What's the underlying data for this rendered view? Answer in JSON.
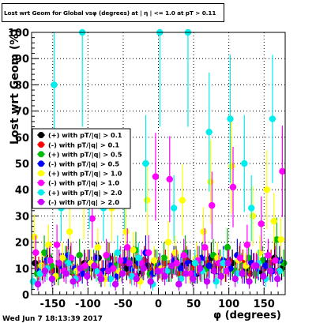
{
  "title": "Lost wrt Geom for Global vsφ (degrees) at | η | <= 1.0 at pT > 0.11",
  "footer": "Wed Jun  7 18:13:39 2017",
  "chart_data": {
    "type": "scatter",
    "title": "Lost wrt Geom for Global vsφ (degrees) at | η | <= 1.0 at pT > 0.11",
    "xlabel": "φ (degrees)",
    "ylabel": "Lost  wrt  Geom (%)",
    "xlim": [
      -180,
      180
    ],
    "ylim": [
      0,
      100
    ],
    "x_ticks": [
      -150,
      -100,
      -50,
      0,
      50,
      100,
      150
    ],
    "y_ticks": [
      0,
      10,
      20,
      30,
      40,
      50,
      60,
      70,
      80,
      90,
      100
    ],
    "grid": true,
    "legend_position": "left-middle",
    "series": [
      {
        "name": "(+) with pT/|q| > 0.1",
        "color": "#000000",
        "marker": "circle",
        "x": [
          -175,
          -165,
          -155,
          -145,
          -135,
          -125,
          -115,
          -105,
          -95,
          -85,
          -75,
          -65,
          -55,
          -45,
          -35,
          -25,
          -15,
          -5,
          5,
          15,
          25,
          35,
          45,
          55,
          65,
          75,
          85,
          95,
          105,
          115,
          125,
          135,
          145,
          155,
          165,
          175
        ],
        "y": [
          12,
          10,
          14,
          9,
          11,
          13,
          8,
          12,
          10,
          14,
          9,
          11,
          12,
          10,
          13,
          8,
          11,
          12,
          10,
          9,
          13,
          11,
          12,
          8,
          10,
          14,
          11,
          9,
          12,
          13,
          10,
          11,
          9,
          12,
          14,
          10
        ]
      },
      {
        "name": "(-) with pT/|q| > 0.1",
        "color": "#ff0000",
        "marker": "circle",
        "x": [
          -170,
          -160,
          -150,
          -140,
          -130,
          -120,
          -110,
          -100,
          -90,
          -80,
          -70,
          -60,
          -50,
          -40,
          -30,
          -20,
          -10,
          0,
          10,
          20,
          30,
          40,
          50,
          60,
          70,
          80,
          90,
          100,
          110,
          120,
          130,
          140,
          150,
          160,
          170
        ],
        "y": [
          10,
          12,
          9,
          11,
          13,
          8,
          10,
          12,
          11,
          9,
          14,
          10,
          12,
          8,
          11,
          13,
          9,
          10,
          12,
          11,
          8,
          13,
          10,
          9,
          12,
          11,
          10,
          13,
          9,
          12,
          8,
          11,
          10,
          12,
          9
        ]
      },
      {
        "name": "(+) with pT/|q| > 0.5",
        "color": "#00bb00",
        "marker": "circle",
        "x": [
          -172,
          -162,
          -152,
          -142,
          -132,
          -122,
          -112,
          -102,
          -92,
          -82,
          -72,
          -62,
          -52,
          -42,
          -32,
          -22,
          -12,
          -2,
          8,
          18,
          28,
          38,
          48,
          58,
          68,
          78,
          88,
          98,
          108,
          118,
          128,
          138,
          148,
          158,
          168,
          178
        ],
        "y": [
          8,
          16,
          11,
          7,
          13,
          9,
          15,
          10,
          12,
          6,
          14,
          11,
          9,
          13,
          17,
          10,
          8,
          12,
          14,
          9,
          11,
          16,
          7,
          13,
          10,
          15,
          12,
          18,
          9,
          11,
          14,
          8,
          13,
          10,
          21,
          12
        ]
      },
      {
        "name": "(-) with pT/|q| > 0.5",
        "color": "#0000ff",
        "marker": "circle",
        "x": [
          -168,
          -158,
          -148,
          -138,
          -128,
          -118,
          -108,
          -98,
          -88,
          -78,
          -68,
          -58,
          -48,
          -38,
          -28,
          -18,
          -8,
          2,
          12,
          22,
          32,
          42,
          52,
          62,
          72,
          82,
          92,
          102,
          112,
          122,
          132,
          142,
          152,
          162,
          172
        ],
        "y": [
          9,
          13,
          7,
          11,
          15,
          10,
          8,
          12,
          14,
          9,
          11,
          7,
          13,
          10,
          12,
          16,
          8,
          11,
          9,
          13,
          10,
          12,
          8,
          14,
          11,
          9,
          13,
          10,
          15,
          8,
          12,
          10,
          11,
          9,
          13
        ]
      },
      {
        "name": "(+) with pT/|q| > 1.0",
        "color": "#ffff00",
        "marker": "circle",
        "x": [
          -176,
          -166,
          -156,
          -146,
          -136,
          -126,
          -116,
          -106,
          -96,
          -86,
          -76,
          -66,
          -56,
          -46,
          -36,
          -26,
          -16,
          -6,
          4,
          14,
          24,
          34,
          44,
          54,
          64,
          74,
          84,
          94,
          104,
          114,
          124,
          134,
          144,
          154,
          164,
          174
        ],
        "y": [
          22,
          11,
          19,
          7,
          14,
          24,
          9,
          34,
          12,
          18,
          6,
          33,
          9,
          24,
          17,
          5,
          36,
          13,
          10,
          20,
          16,
          36,
          8,
          14,
          24,
          43,
          14,
          9,
          49,
          13,
          11,
          30,
          16,
          40,
          28,
          21
        ]
      },
      {
        "name": "(-) with pT/|q| > 1.0",
        "color": "#ff00ff",
        "marker": "circle",
        "x": [
          -174,
          -164,
          -154,
          -144,
          -134,
          -124,
          -114,
          -104,
          -94,
          -84,
          -74,
          -64,
          -54,
          -44,
          -34,
          -24,
          -14,
          -4,
          6,
          16,
          26,
          36,
          46,
          56,
          66,
          76,
          86,
          96,
          106,
          116,
          126,
          136,
          146,
          156,
          166,
          176
        ],
        "y": [
          16,
          8,
          13,
          19,
          9,
          14,
          6,
          11,
          29,
          8,
          15,
          10,
          13,
          18,
          7,
          12,
          16,
          45,
          9,
          44,
          12,
          15,
          8,
          13,
          18,
          34,
          12,
          9,
          41,
          14,
          19,
          11,
          27,
          15,
          13,
          47
        ]
      },
      {
        "name": "(+) with pT/|q| > 2.0",
        "color": "#00eeee",
        "marker": "circle",
        "x": [
          -178,
          -168,
          -158,
          -148,
          -138,
          -128,
          -118,
          -108,
          -98,
          -88,
          -78,
          -68,
          -58,
          -48,
          -38,
          -28,
          -18,
          -8,
          2,
          12,
          22,
          32,
          42,
          52,
          62,
          72,
          82,
          92,
          102,
          112,
          122,
          132,
          142,
          152,
          162,
          172
        ],
        "y": [
          5,
          8,
          10,
          80,
          33,
          12,
          6,
          100,
          40,
          9,
          33,
          6,
          16,
          40,
          7,
          14,
          50,
          4,
          100,
          9,
          33,
          6,
          100,
          12,
          9,
          62,
          5,
          12,
          67,
          8,
          50,
          33,
          12,
          6,
          67,
          9
        ]
      },
      {
        "name": "(-) with pT/|q| > 2.0",
        "color": "#cc00ff",
        "marker": "circle",
        "x": [
          -171,
          -161,
          -151,
          -141,
          -131,
          -121,
          -111,
          -101,
          -91,
          -81,
          -71,
          -61,
          -51,
          -41,
          -31,
          -21,
          -11,
          -1,
          9,
          19,
          29,
          39,
          49,
          59,
          69,
          79,
          89,
          99,
          109,
          119,
          129,
          139,
          149,
          159,
          169
        ],
        "y": [
          4,
          9,
          6,
          12,
          8,
          5,
          10,
          7,
          11,
          6,
          9,
          4,
          8,
          12,
          6,
          10,
          5,
          9,
          7,
          11,
          4,
          8,
          6,
          10,
          5,
          9,
          7,
          12,
          6,
          8,
          5,
          11,
          7,
          9,
          6
        ]
      }
    ]
  }
}
